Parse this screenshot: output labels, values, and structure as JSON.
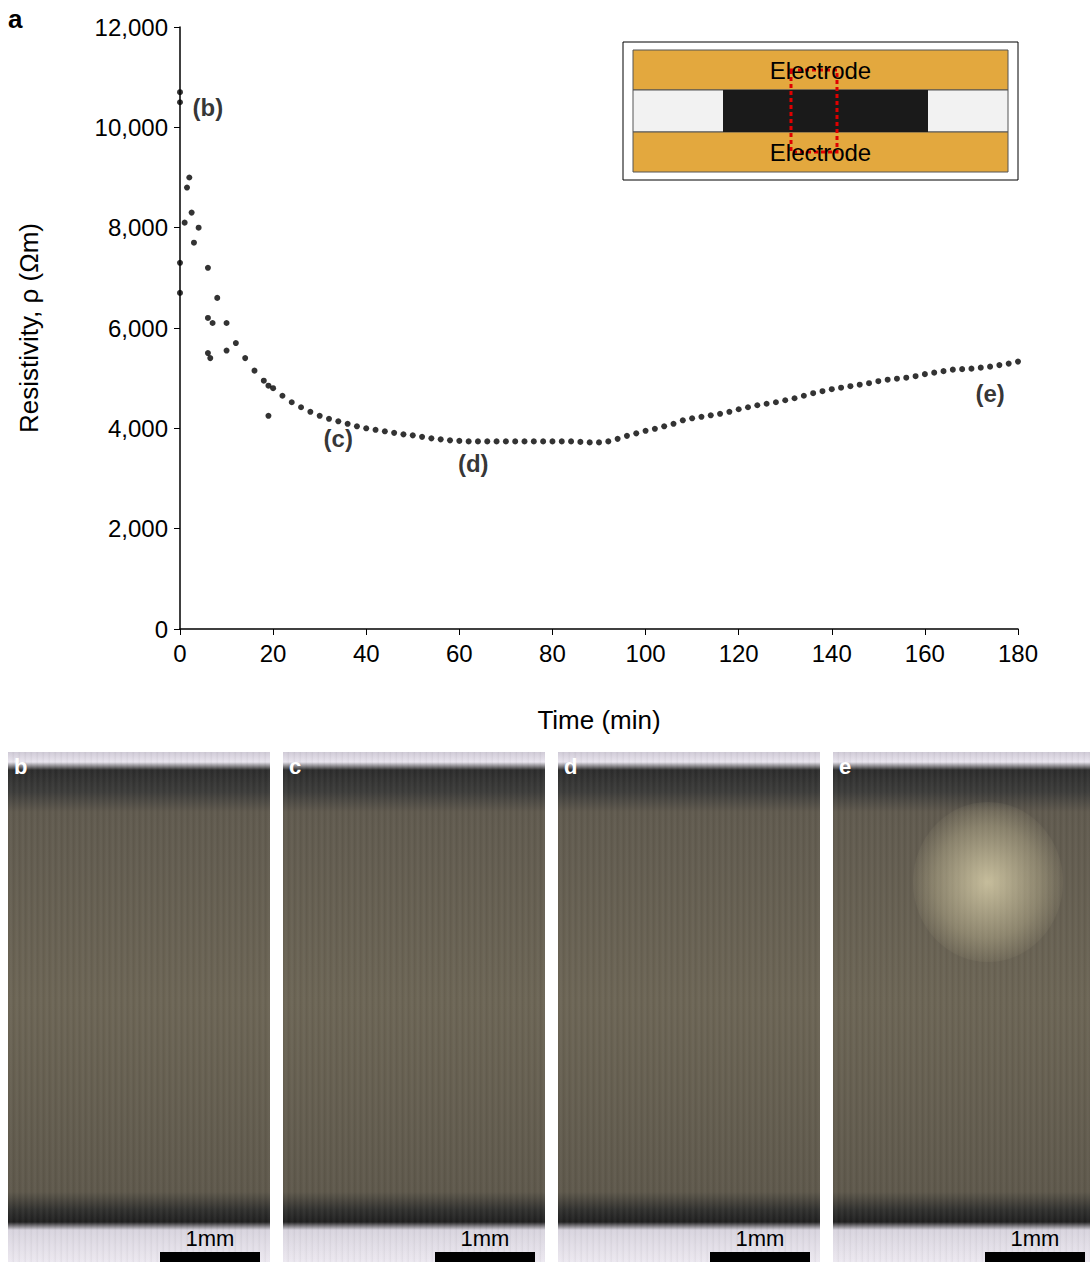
{
  "chart_data": {
    "type": "scatter",
    "x_label": "Time (min)",
    "y_label": "Resistivity, ρ (Ωm)",
    "x": [
      0,
      2,
      4,
      6,
      8,
      10,
      12,
      14,
      16,
      18,
      20,
      22,
      24,
      26,
      28,
      30,
      32,
      34,
      36,
      38,
      40,
      42,
      44,
      46,
      48,
      50,
      52,
      54,
      56,
      58,
      60,
      62,
      64,
      66,
      68,
      70,
      72,
      74,
      76,
      78,
      80,
      82,
      84,
      86,
      88,
      90,
      92,
      94,
      96,
      98,
      100,
      102,
      104,
      106,
      108,
      110,
      112,
      114,
      116,
      118,
      120,
      122,
      124,
      126,
      128,
      130,
      132,
      134,
      136,
      138,
      140,
      142,
      144,
      146,
      148,
      150,
      152,
      154,
      156,
      158,
      160,
      162,
      164,
      166,
      168,
      170,
      172,
      174,
      176,
      178,
      180,
      0,
      0,
      0,
      1,
      1.5,
      2.5,
      3,
      6,
      6,
      6.5,
      7,
      10,
      19,
      19
    ],
    "values": [
      10500,
      9000,
      8000,
      7200,
      6600,
      6100,
      5700,
      5400,
      5150,
      4950,
      4800,
      4650,
      4520,
      4420,
      4330,
      4250,
      4190,
      4140,
      4090,
      4040,
      4000,
      3970,
      3940,
      3910,
      3880,
      3860,
      3830,
      3800,
      3780,
      3760,
      3750,
      3740,
      3740,
      3740,
      3740,
      3740,
      3740,
      3740,
      3740,
      3740,
      3740,
      3740,
      3740,
      3730,
      3720,
      3720,
      3740,
      3790,
      3850,
      3900,
      3950,
      3990,
      4040,
      4090,
      4160,
      4200,
      4230,
      4260,
      4290,
      4330,
      4380,
      4420,
      4460,
      4490,
      4520,
      4560,
      4600,
      4650,
      4700,
      4740,
      4780,
      4810,
      4840,
      4870,
      4900,
      4940,
      4970,
      4990,
      5010,
      5040,
      5080,
      5110,
      5140,
      5170,
      5180,
      5190,
      5210,
      5230,
      5260,
      5290,
      5330,
      10700,
      6700,
      7300,
      8100,
      8800,
      8300,
      7700,
      6200,
      5500,
      5400,
      6100,
      5550,
      4850,
      4250
    ],
    "color": "#000000",
    "marker": "circle",
    "xlim": [
      0,
      180
    ],
    "ylim": [
      0,
      12000
    ],
    "xticks": [
      0,
      20,
      40,
      60,
      80,
      100,
      120,
      140,
      160,
      180
    ],
    "yticks": [
      0,
      2000,
      4000,
      6000,
      8000,
      10000,
      12000
    ],
    "grid": false,
    "annotations": [
      {
        "text": "(b)",
        "x": 6,
        "y": 10400
      },
      {
        "text": "(c)",
        "x": 34,
        "y": 3800
      },
      {
        "text": "(d)",
        "x": 63,
        "y": 3300
      },
      {
        "text": "(e)",
        "x": 174,
        "y": 4700
      }
    ]
  },
  "panel_label": "a",
  "inset": {
    "top_label": "Electrode",
    "bottom_label": "Electrode"
  },
  "images": [
    {
      "label": "b",
      "scale_bar": "1mm"
    },
    {
      "label": "c",
      "scale_bar": "1mm"
    },
    {
      "label": "d",
      "scale_bar": "1mm"
    },
    {
      "label": "e",
      "scale_bar": "1mm"
    }
  ]
}
